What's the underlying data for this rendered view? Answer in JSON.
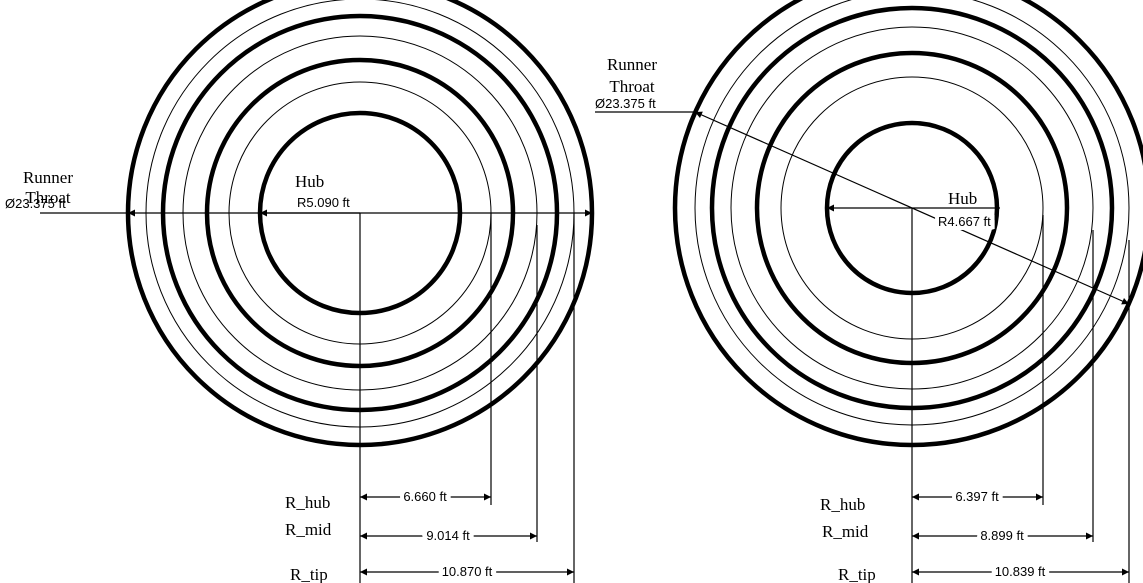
{
  "left": {
    "throat": {
      "line1": "Runner",
      "line2": "Throat",
      "dim": "Ø23.375 ft"
    },
    "hub": {
      "label": "Hub",
      "dim": "R5.090 ft"
    },
    "radii": [
      {
        "label": "R_hub",
        "dim": "6.660 ft"
      },
      {
        "label": "R_mid",
        "dim": "9.014 ft"
      },
      {
        "label": "R_tip",
        "dim": "10.870 ft"
      }
    ]
  },
  "right": {
    "throat": {
      "line1": "Runner",
      "line2": "Throat",
      "dim": "Ø23.375 ft"
    },
    "hub": {
      "label": "Hub",
      "dim": "R4.667 ft"
    },
    "radii": [
      {
        "label": "R_hub",
        "dim": "6.397 ft"
      },
      {
        "label": "R_mid",
        "dim": "8.899 ft"
      },
      {
        "label": "R_tip",
        "dim": "10.839 ft"
      }
    ]
  }
}
